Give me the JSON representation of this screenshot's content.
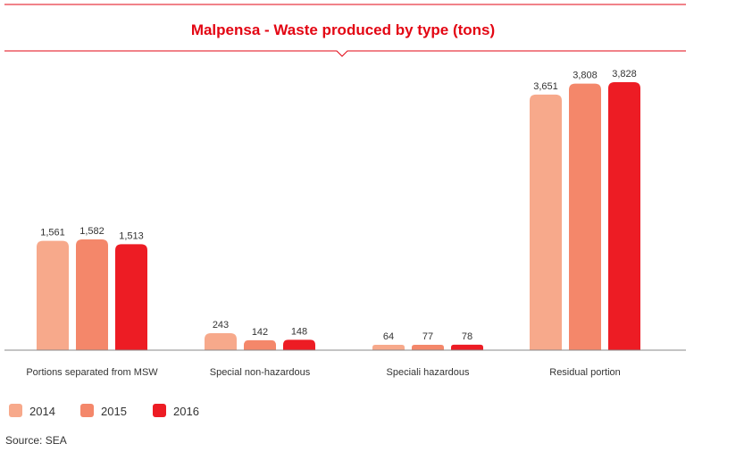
{
  "chart_data": {
    "type": "bar",
    "title": "Malpensa - Waste produced by type (tons)",
    "categories": [
      "Portions separated from MSW",
      "Special non-hazardous",
      "Speciali hazardous",
      "Residual portion"
    ],
    "series": [
      {
        "name": "2014",
        "color": "#f7a98b",
        "values": [
          1561,
          243,
          64,
          3651
        ],
        "labels": [
          "1,561",
          "243",
          "64",
          "3,651"
        ]
      },
      {
        "name": "2015",
        "color": "#f4876a",
        "values": [
          1582,
          142,
          77,
          3808
        ],
        "labels": [
          "1,582",
          "142",
          "77",
          "3,808"
        ]
      },
      {
        "name": "2016",
        "color": "#ed1c24",
        "values": [
          1513,
          148,
          78,
          3828
        ],
        "labels": [
          "1,513",
          "148",
          "78",
          "3,828"
        ]
      }
    ],
    "source": "Source: SEA",
    "ylim": [
      0,
      3828
    ],
    "grid": false,
    "legend_position": "bottom-left"
  },
  "colors": {
    "accent": "#e30613",
    "axis": "#888888"
  }
}
